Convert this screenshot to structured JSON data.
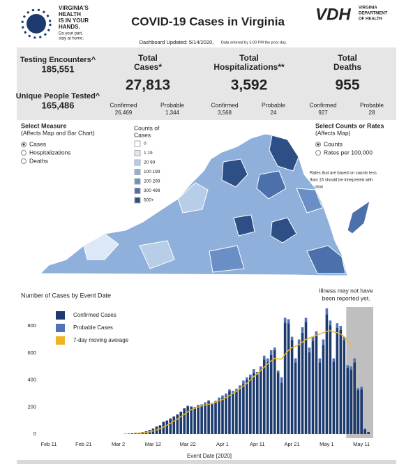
{
  "header": {
    "tagline": [
      "VIRGINIA'S",
      "HEALTH",
      "IS IN YOUR",
      "HANDS."
    ],
    "subtag": [
      "Do your part,",
      "stay at home."
    ],
    "title": "COVID-19 Cases in Virginia",
    "updated": "Dashboard Updated: 5/14/2020,",
    "updated_note": "Data entered by 5:00 PM the prior day.",
    "vdh": "VDH",
    "vdh_name": [
      "VIRGINIA",
      "DEPARTMENT",
      "OF HEALTH"
    ]
  },
  "stats": {
    "testing_label": "Testing Encounters^",
    "testing": "185,551",
    "people_label": "Unique People Tested^",
    "people": "165,486",
    "blocks": [
      {
        "title": [
          "Total",
          "Cases*"
        ],
        "total": "27,813",
        "confirmed_label": "Confirmed",
        "confirmed": "26,469",
        "probable_label": "Probable",
        "probable": "1,344"
      },
      {
        "title": [
          "Total",
          "Hospitalizations**"
        ],
        "total": "3,592",
        "confirmed_label": "Confirmed",
        "confirmed": "3,568",
        "probable_label": "Probable",
        "probable": "24"
      },
      {
        "title": [
          "Total",
          "Deaths"
        ],
        "total": "955",
        "confirmed_label": "Confirmed",
        "confirmed": "927",
        "probable_label": "Probable",
        "probable": "28"
      }
    ]
  },
  "controls": {
    "measure_title": "Select Measure",
    "measure_note": "(Affects Map and Bar Chart)",
    "measures": [
      "Cases",
      "Hospitalizations",
      "Deaths"
    ],
    "rate_title": "Select Counts or Rates",
    "rate_note": "(Affects Map)",
    "rates": [
      "Counts",
      "Rates per 100,000"
    ],
    "rate_warning": [
      "Rates that are based on counts less",
      "than 15 should be interpreted with",
      "caution"
    ]
  },
  "map_legend": {
    "title": [
      "Counts of",
      "Cases"
    ],
    "labels": [
      "0",
      "1 19",
      "20 99",
      "100 199",
      "200 299",
      "300 499",
      "500+"
    ],
    "colors": [
      "#ffffff",
      "#dce8f5",
      "#b7cde8",
      "#8fb0db",
      "#6a8fc7",
      "#4b70ab",
      "#2d4f86"
    ]
  },
  "chart_data": {
    "type": "bar",
    "stacked": true,
    "title": "Number of Cases by Event Date",
    "x_label": "Event Date [2020]",
    "annotation": [
      "Illness may not have",
      "been reported yet."
    ],
    "categories": [
      "Feb 11",
      null,
      null,
      null,
      null,
      null,
      null,
      null,
      null,
      null,
      "Feb 21",
      null,
      null,
      null,
      null,
      null,
      null,
      null,
      null,
      null,
      "Mar 2",
      null,
      null,
      null,
      null,
      null,
      null,
      null,
      null,
      null,
      "Mar 12",
      null,
      null,
      null,
      null,
      null,
      null,
      null,
      null,
      null,
      "Mar 22",
      null,
      null,
      null,
      null,
      null,
      null,
      null,
      null,
      null,
      "Apr 1",
      null,
      null,
      null,
      null,
      null,
      null,
      null,
      null,
      null,
      "Apr 11",
      null,
      null,
      null,
      null,
      null,
      null,
      null,
      null,
      null,
      "Apr 21",
      null,
      null,
      null,
      null,
      null,
      null,
      null,
      null,
      null,
      "May 1",
      null,
      null,
      null,
      null,
      null,
      null,
      null,
      null,
      null,
      "May 11",
      null,
      null
    ],
    "series": [
      {
        "name": "Confirmed Cases",
        "color": "#1c3a6e",
        "values": [
          0,
          0,
          0,
          0,
          0,
          0,
          0,
          0,
          0,
          0,
          0,
          0,
          0,
          0,
          0,
          0,
          0,
          0,
          0,
          0,
          0,
          0,
          2,
          3,
          5,
          8,
          10,
          15,
          20,
          30,
          40,
          55,
          65,
          90,
          100,
          115,
          130,
          145,
          165,
          190,
          205,
          199,
          192,
          209,
          210,
          223,
          242,
          220,
          233,
          255,
          270,
          282,
          318,
          300,
          320,
          340,
          370,
          400,
          418,
          455,
          440,
          475,
          550,
          535,
          585,
          620,
          455,
          380,
          825,
          820,
          695,
          530,
          665,
          750,
          830,
          605,
          690,
          735,
          530,
          660,
          885,
          805,
          535,
          785,
          770,
          695,
          490,
          475,
          530,
          325,
          330,
          35,
          15
        ]
      },
      {
        "name": "Probable Cases",
        "color": "#4f72b8",
        "values": [
          0,
          0,
          0,
          0,
          0,
          0,
          0,
          0,
          0,
          0,
          0,
          0,
          0,
          0,
          0,
          0,
          0,
          0,
          0,
          0,
          0,
          0,
          0,
          0,
          0,
          0,
          0,
          0,
          0,
          0,
          0,
          0,
          0,
          0,
          0,
          0,
          0,
          0,
          0,
          0,
          5,
          6,
          8,
          6,
          10,
          12,
          8,
          10,
          12,
          15,
          15,
          18,
          12,
          20,
          15,
          20,
          25,
          20,
          22,
          25,
          20,
          25,
          30,
          25,
          35,
          20,
          15,
          40,
          35,
          30,
          25,
          30,
          35,
          40,
          30,
          35,
          30,
          25,
          30,
          40,
          45,
          35,
          25,
          35,
          30,
          25,
          20,
          25,
          30,
          15,
          20,
          5,
          0
        ]
      },
      {
        "name": "7-day moving average",
        "color": "#f0b323",
        "type": "line",
        "values": [
          null,
          null,
          null,
          null,
          null,
          null,
          null,
          null,
          null,
          null,
          null,
          null,
          null,
          null,
          null,
          null,
          null,
          null,
          null,
          null,
          null,
          null,
          null,
          null,
          null,
          5,
          7,
          9,
          12,
          16,
          22,
          30,
          40,
          51,
          65,
          79,
          95,
          110,
          128,
          145,
          165,
          180,
          190,
          200,
          208,
          215,
          220,
          225,
          235,
          245,
          255,
          270,
          285,
          300,
          315,
          335,
          355,
          375,
          400,
          425,
          445,
          470,
          495,
          520,
          540,
          560,
          555,
          555,
          590,
          620,
          640,
          650,
          660,
          680,
          700,
          710,
          720,
          730,
          740,
          750,
          760,
          765,
          755,
          750,
          740,
          720,
          690,
          660,
          null,
          null,
          null,
          null,
          null
        ]
      }
    ],
    "ylim": [
      0,
      940
    ],
    "yticks": [
      0,
      200,
      400,
      600,
      800
    ],
    "grid": false
  }
}
